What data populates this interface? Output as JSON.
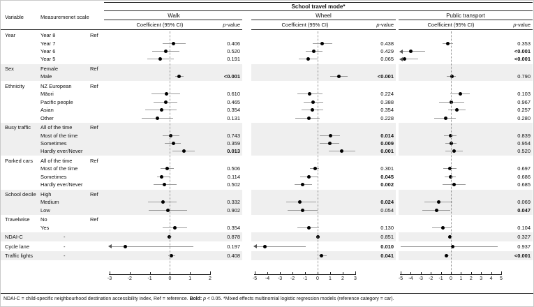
{
  "chart_data": {
    "type": "forest",
    "title": "School travel mode*",
    "columns": {
      "variable": "Variable",
      "scale": "Measuremenet scale",
      "coef": "Coefficient (95% CI)",
      "p_italic": "p",
      "p_rest": "-value"
    },
    "ref_label": "Ref",
    "panels": [
      {
        "key": "walk",
        "name": "Walk",
        "min": -3,
        "max": 2,
        "ticks": [
          -3,
          -2,
          -1,
          0,
          1,
          2
        ]
      },
      {
        "key": "wheel",
        "name": "Wheel",
        "min": -5,
        "max": 3,
        "ticks": [
          -5,
          -4,
          -3,
          -2,
          -1,
          0,
          1,
          2,
          3
        ]
      },
      {
        "key": "pt",
        "name": "Public transport",
        "min": -5,
        "max": 5,
        "ticks": [
          -5,
          -4,
          -3,
          -2,
          -1,
          0,
          1,
          2,
          3,
          4,
          5
        ]
      }
    ],
    "groups": [
      {
        "variable": "Year",
        "shaded": false,
        "rows": [
          {
            "scale": "Year 8",
            "ref": true
          },
          {
            "scale": "Year 7",
            "walk": {
              "est": 0.18,
              "lo": -0.37,
              "hi": 0.78,
              "p": "0.406"
            },
            "wheel": {
              "est": 0.37,
              "lo": -0.37,
              "hi": 1.17,
              "p": "0.438"
            },
            "pt": {
              "est": -0.28,
              "lo": -0.85,
              "hi": 0.23,
              "p": "0.353"
            }
          },
          {
            "scale": "Year 6",
            "walk": {
              "est": -0.22,
              "lo": -0.89,
              "hi": 0.47,
              "p": "0.520"
            },
            "wheel": {
              "est": -0.32,
              "lo": -0.96,
              "hi": 0.39,
              "p": "0.429"
            },
            "pt": {
              "est": -4.0,
              "lo": -5.6,
              "hi": -2.55,
              "p": "<0.001",
              "sig": true,
              "arrow_lo": true
            }
          },
          {
            "scale": "Year 5",
            "walk": {
              "est": -0.47,
              "lo": -1.13,
              "hi": 0.2,
              "p": "0.191"
            },
            "wheel": {
              "est": -0.74,
              "lo": -1.5,
              "hi": 0.04,
              "p": "0.065"
            },
            "pt": {
              "est": -4.63,
              "lo": -5.3,
              "hi": -3.28,
              "p": "<0.001",
              "sig": true,
              "arrow_lo": true
            }
          }
        ]
      },
      {
        "variable": "Sex",
        "shaded": true,
        "rows": [
          {
            "scale": "Female",
            "ref": true
          },
          {
            "scale": "Male",
            "walk": {
              "est": 0.47,
              "lo": 0.26,
              "hi": 0.67,
              "p": "<0.001",
              "sig": true
            },
            "wheel": {
              "est": 1.72,
              "lo": 0.98,
              "hi": 2.41,
              "p": "<0.001",
              "sig": true
            },
            "pt": {
              "est": 0.07,
              "lo": -0.4,
              "hi": 0.51,
              "p": "0.790"
            }
          }
        ]
      },
      {
        "variable": "Ethnicity",
        "shaded": false,
        "rows": [
          {
            "scale": "NZ European",
            "ref": true
          },
          {
            "scale": "Māori",
            "walk": {
              "est": -0.18,
              "lo": -0.93,
              "hi": 0.5,
              "p": "0.610"
            },
            "wheel": {
              "est": -0.63,
              "lo": -1.61,
              "hi": 0.39,
              "p": "0.224"
            },
            "pt": {
              "est": 0.92,
              "lo": -0.05,
              "hi": 1.9,
              "p": "0.103"
            }
          },
          {
            "scale": "Pacific people",
            "walk": {
              "est": -0.22,
              "lo": -0.81,
              "hi": 0.38,
              "p": "0.465"
            },
            "wheel": {
              "est": -0.35,
              "lo": -1.11,
              "hi": 0.43,
              "p": "0.388"
            },
            "pt": {
              "est": 0.0,
              "lo": -1.2,
              "hi": 1.34,
              "p": "0.967"
            }
          },
          {
            "scale": "Asian",
            "walk": {
              "est": -0.43,
              "lo": -1.22,
              "hi": 0.34,
              "p": "0.354"
            },
            "wheel": {
              "est": -0.39,
              "lo": -1.28,
              "hi": 0.43,
              "p": "0.354"
            },
            "pt": {
              "est": 0.58,
              "lo": -0.28,
              "hi": 1.44,
              "p": "0.257"
            }
          },
          {
            "scale": "Other",
            "walk": {
              "est": -0.63,
              "lo": -1.41,
              "hi": 0.15,
              "p": "0.131"
            },
            "wheel": {
              "est": -0.68,
              "lo": -1.79,
              "hi": 0.15,
              "p": "0.228"
            },
            "pt": {
              "est": -0.53,
              "lo": -1.67,
              "hi": 0.51,
              "p": "0.280"
            }
          }
        ]
      },
      {
        "variable": "Busy traffic",
        "shaded": true,
        "rows": [
          {
            "scale": "All of the time",
            "ref": true
          },
          {
            "scale": "Most of the time",
            "walk": {
              "est": 0.03,
              "lo": -0.35,
              "hi": 0.46,
              "p": "0.743"
            },
            "wheel": {
              "est": 1.02,
              "lo": 0.18,
              "hi": 1.78,
              "p": "0.014",
              "sig": true
            },
            "pt": {
              "est": -0.05,
              "lo": -0.69,
              "hi": 0.58,
              "p": "0.839"
            }
          },
          {
            "scale": "Sometimes",
            "walk": {
              "est": 0.17,
              "lo": -0.26,
              "hi": 0.55,
              "p": "0.359"
            },
            "wheel": {
              "est": 0.98,
              "lo": 0.18,
              "hi": 1.72,
              "p": "0.009",
              "sig": true
            },
            "pt": {
              "est": 0.0,
              "lo": -0.58,
              "hi": 0.53,
              "p": "0.954"
            }
          },
          {
            "scale": "Hardly ever/Never",
            "walk": {
              "est": 0.69,
              "lo": 0.11,
              "hi": 1.23,
              "p": "0.013",
              "sig": true
            },
            "wheel": {
              "est": 1.91,
              "lo": 0.89,
              "hi": 3.05,
              "p": "0.001",
              "sig": true
            },
            "pt": {
              "est": 0.3,
              "lo": -0.53,
              "hi": 1.16,
              "p": "0.520"
            }
          }
        ]
      },
      {
        "variable": "Parked cars",
        "shaded": false,
        "rows": [
          {
            "scale": "All of the time",
            "ref": true
          },
          {
            "scale": "Most of the time",
            "walk": {
              "est": -0.15,
              "lo": -0.45,
              "hi": 0.2,
              "p": "0.506"
            },
            "wheel": {
              "est": -0.22,
              "lo": -0.59,
              "hi": 0.11,
              "p": "0.301"
            },
            "pt": {
              "est": -0.07,
              "lo": -0.74,
              "hi": 0.58,
              "p": "0.697"
            }
          },
          {
            "scale": "Sometimes",
            "walk": {
              "est": -0.4,
              "lo": -0.64,
              "hi": 0.0,
              "p": "0.114"
            },
            "wheel": {
              "est": -0.68,
              "lo": -1.37,
              "hi": -0.02,
              "p": "0.045",
              "sig": true
            },
            "pt": {
              "est": -0.05,
              "lo": -0.63,
              "hi": 0.51,
              "p": "0.686"
            }
          },
          {
            "scale": "Hardly ever/Never",
            "walk": {
              "est": -0.28,
              "lo": -0.8,
              "hi": 0.35,
              "p": "0.502"
            },
            "wheel": {
              "est": -1.18,
              "lo": -1.85,
              "hi": -0.44,
              "p": "0.002",
              "sig": true
            },
            "pt": {
              "est": 0.28,
              "lo": -0.85,
              "hi": 1.44,
              "p": "0.685"
            }
          }
        ]
      },
      {
        "variable": "School decile",
        "shaded": true,
        "rows": [
          {
            "scale": "High",
            "ref": true
          },
          {
            "scale": "Medium",
            "walk": {
              "est": -0.35,
              "lo": -1.1,
              "hi": 0.32,
              "p": "0.332"
            },
            "wheel": {
              "est": -1.39,
              "lo": -2.5,
              "hi": -0.13,
              "p": "0.024",
              "sig": true
            },
            "pt": {
              "est": -1.23,
              "lo": -2.66,
              "hi": 0.12,
              "p": "0.069"
            }
          },
          {
            "scale": "Low",
            "walk": {
              "est": -0.1,
              "lo": -1.05,
              "hi": 0.85,
              "p": "0.902"
            },
            "wheel": {
              "est": -1.18,
              "lo": -2.39,
              "hi": 0.0,
              "p": "0.054"
            },
            "pt": {
              "est": -1.39,
              "lo": -2.83,
              "hi": -0.05,
              "p": "0.047",
              "sig": true
            }
          }
        ]
      },
      {
        "variable": "Travelwise",
        "shaded": false,
        "rows": [
          {
            "scale": "No",
            "ref": true
          },
          {
            "scale": "Yes",
            "walk": {
              "est": 0.23,
              "lo": -0.37,
              "hi": 0.85,
              "p": "0.354"
            },
            "wheel": {
              "est": -0.72,
              "lo": -1.61,
              "hi": 0.11,
              "p": "0.130"
            },
            "pt": {
              "est": -0.81,
              "lo": -1.85,
              "hi": 0.07,
              "p": "0.104"
            }
          }
        ]
      },
      {
        "variable": "NDAI-C",
        "shaded": true,
        "rows": [
          {
            "scale": "-",
            "walk": {
              "est": -0.02,
              "lo": -0.15,
              "hi": 0.08,
              "p": "0.878"
            },
            "wheel": {
              "est": 0.0,
              "lo": -0.13,
              "hi": 0.15,
              "p": "0.851"
            },
            "pt": {
              "est": -0.07,
              "lo": -0.28,
              "hi": 0.14,
              "p": "0.327"
            }
          }
        ]
      },
      {
        "variable": "Cycle lane",
        "shaded": false,
        "rows": [
          {
            "scale": "-",
            "walk": {
              "est": -2.23,
              "lo": -3.3,
              "hi": 1.15,
              "p": "0.197",
              "arrow_lo": true
            },
            "wheel": {
              "est": -4.17,
              "lo": -5.4,
              "hi": -0.96,
              "p": "0.010",
              "sig": true,
              "arrow_lo": true
            },
            "pt": {
              "est": 0.16,
              "lo": -5.1,
              "hi": 4.63,
              "p": "0.937"
            }
          }
        ]
      },
      {
        "variable": "Traffic lights",
        "shaded": true,
        "rows": [
          {
            "scale": "-",
            "walk": {
              "est": 0.07,
              "lo": -0.1,
              "hi": 0.25,
              "p": "0.408"
            },
            "wheel": {
              "est": 0.33,
              "lo": 0.09,
              "hi": 0.71,
              "p": "0.041",
              "sig": true
            },
            "pt": {
              "est": -0.42,
              "lo": -0.63,
              "hi": -0.19,
              "p": "<0.001",
              "sig": true
            }
          }
        ]
      }
    ],
    "footnote_segments": [
      {
        "text": "NDAI-C = child-specific neighbourhood destination accessibility index, Ref = reference. ",
        "bold": false,
        "italic": false
      },
      {
        "text": "Bold: ",
        "bold": true,
        "italic": false
      },
      {
        "text": "p",
        "bold": false,
        "italic": true
      },
      {
        "text": " < 0.05. *Mixed effects multinomial logistic regression models (reference category = car).",
        "bold": false,
        "italic": false
      }
    ]
  }
}
